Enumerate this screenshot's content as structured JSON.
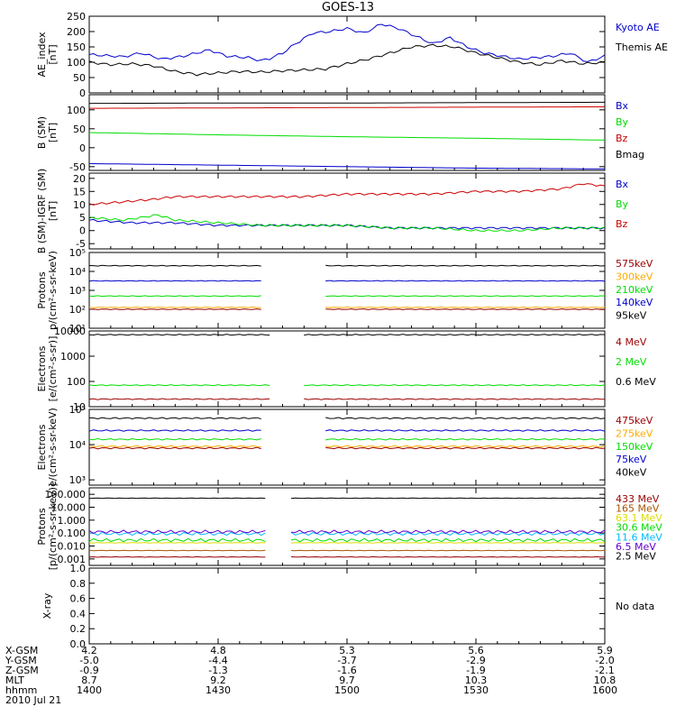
{
  "title": "GOES-13",
  "colors": {
    "black": "#000000",
    "blue": "#0000cc",
    "green": "#00dd00",
    "red": "#cc0000",
    "darkred": "#990000",
    "orange": "#ffaa00",
    "yellow": "#dddd00",
    "cyan": "#00bbff",
    "purple": "#6600cc",
    "brown": "#aa5500",
    "gray": "#444444"
  },
  "x_ticks_time": [
    "1400",
    "1430",
    "1500",
    "1530",
    "1600"
  ],
  "footer": {
    "rows": [
      {
        "label": "X-GSM",
        "values": [
          "4.2",
          "4.8",
          "5.3",
          "5.6",
          "5.9"
        ]
      },
      {
        "label": "Y-GSM",
        "values": [
          "-5.0",
          "-4.4",
          "-3.7",
          "-2.9",
          "-2.0"
        ]
      },
      {
        "label": "Z-GSM",
        "values": [
          "-0.9",
          "-1.3",
          "-1.6",
          "-1.9",
          "-2.1"
        ]
      },
      {
        "label": "MLT",
        "values": [
          "8.7",
          "9.2",
          "9.7",
          "10.3",
          "10.8"
        ]
      },
      {
        "label": "hhmm",
        "values": [
          "1400",
          "1430",
          "1500",
          "1530",
          "1600"
        ]
      }
    ],
    "date": "2010 Jul 21"
  },
  "no_data_text": "No data",
  "chart_data": [
    {
      "type": "line",
      "ylabel": "AE_index\n[nT]",
      "scale": "linear",
      "ylim": [
        0,
        250
      ],
      "yticks": [
        "0",
        "50",
        "100",
        "150",
        "200",
        "250"
      ],
      "series": [
        {
          "name": "Kyoto AE",
          "color_key": "blue",
          "x": [
            0,
            8,
            12,
            17,
            22,
            28,
            32,
            37,
            40,
            42,
            45,
            48,
            52,
            56,
            60,
            64,
            68,
            72,
            76,
            80,
            84,
            88,
            92,
            96,
            100,
            104,
            108,
            112,
            116,
            120
          ],
          "y": [
            125,
            118,
            130,
            110,
            120,
            140,
            120,
            115,
            105,
            112,
            130,
            160,
            195,
            200,
            210,
            195,
            225,
            210,
            185,
            160,
            180,
            150,
            130,
            120,
            110,
            115,
            120,
            130,
            100,
            120
          ]
        },
        {
          "name": "Themis AE",
          "color_key": "black",
          "x": [
            0,
            5,
            10,
            15,
            20,
            25,
            30,
            35,
            40,
            45,
            50,
            55,
            60,
            65,
            70,
            75,
            80,
            85,
            90,
            95,
            100,
            105,
            110,
            115,
            120
          ],
          "y": [
            100,
            92,
            95,
            88,
            70,
            60,
            65,
            70,
            68,
            72,
            75,
            78,
            95,
            110,
            130,
            150,
            155,
            150,
            130,
            115,
            100,
            92,
            105,
            95,
            100
          ]
        }
      ]
    },
    {
      "type": "line",
      "ylabel": "B (SM)\n[nT]",
      "scale": "linear",
      "ylim": [
        -60,
        140
      ],
      "yticks": [
        "-50",
        "0",
        "50",
        "100"
      ],
      "series": [
        {
          "name": "Bx",
          "color_key": "blue",
          "x": [
            0,
            30,
            60,
            90,
            120
          ],
          "y": [
            -42,
            -46,
            -50,
            -54,
            -56
          ]
        },
        {
          "name": "By",
          "color_key": "green",
          "x": [
            0,
            30,
            60,
            90,
            120
          ],
          "y": [
            40,
            34,
            29,
            25,
            20
          ]
        },
        {
          "name": "Bz",
          "color_key": "red",
          "x": [
            0,
            30,
            60,
            90,
            120
          ],
          "y": [
            104,
            105,
            106,
            107,
            108
          ]
        },
        {
          "name": "Bmag",
          "color_key": "black",
          "x": [
            0,
            30,
            60,
            90,
            120
          ],
          "y": [
            117,
            118,
            118,
            119,
            120
          ]
        }
      ]
    },
    {
      "type": "line",
      "ylabel": "B (SM)-IGRF (SM)\n[nT]",
      "scale": "linear",
      "ylim": [
        -7,
        22
      ],
      "yticks": [
        "-5",
        "0",
        "5",
        "10",
        "15",
        "20"
      ],
      "series": [
        {
          "name": "Bx",
          "color_key": "blue",
          "x": [
            0,
            10,
            20,
            30,
            40,
            50,
            60,
            70,
            80,
            90,
            100,
            110,
            120
          ],
          "y": [
            4,
            3,
            3,
            2,
            2,
            2,
            2,
            1,
            1,
            1,
            1,
            1,
            1
          ]
        },
        {
          "name": "By",
          "color_key": "green",
          "x": [
            0,
            8,
            12,
            16,
            20,
            30,
            40,
            50,
            60,
            70,
            80,
            90,
            100,
            110,
            120
          ],
          "y": [
            5,
            4,
            5,
            6,
            4,
            3,
            2,
            2,
            2,
            1,
            1,
            0,
            0,
            1,
            1
          ]
        },
        {
          "name": "Bz",
          "color_key": "red",
          "x": [
            0,
            8,
            15,
            20,
            30,
            40,
            50,
            60,
            70,
            80,
            90,
            100,
            110,
            115,
            120
          ],
          "y": [
            10,
            11,
            12,
            13,
            13,
            13,
            13,
            14,
            14,
            14,
            15,
            15,
            16,
            18,
            17
          ]
        }
      ]
    },
    {
      "type": "line",
      "ylabel": "Protons\np/(cm²-s-sr-keV)",
      "scale": "log",
      "ylim": [
        1,
        5
      ],
      "yticks": [
        "10¹",
        "10²",
        "10³",
        "10⁴",
        "10⁵"
      ],
      "gaps": [
        [
          40,
          55
        ]
      ],
      "series": [
        {
          "name": "575keV",
          "color_key": "darkred",
          "x": [
            0,
            120
          ],
          "y": [
            2.0,
            2.0
          ]
        },
        {
          "name": "300keV",
          "color_key": "orange",
          "x": [
            0,
            120
          ],
          "y": [
            2.1,
            2.1
          ]
        },
        {
          "name": "210keV",
          "color_key": "green",
          "x": [
            0,
            120
          ],
          "y": [
            2.7,
            2.7
          ]
        },
        {
          "name": "140keV",
          "color_key": "blue",
          "x": [
            0,
            120
          ],
          "y": [
            3.5,
            3.5
          ]
        },
        {
          "name": "95keV",
          "color_key": "black",
          "x": [
            0,
            120
          ],
          "y": [
            4.3,
            4.3
          ]
        }
      ]
    },
    {
      "type": "line",
      "ylabel": "Electrons\n[e/(cm²-s-sr)]",
      "scale": "log",
      "ylim": [
        1,
        4
      ],
      "yticks": [
        "10",
        "100",
        "1000",
        "10000"
      ],
      "gaps": [
        [
          42,
          50
        ]
      ],
      "series": [
        {
          "name": "4 MeV",
          "color_key": "darkred",
          "x": [
            0,
            120
          ],
          "y": [
            1.3,
            1.3
          ]
        },
        {
          "name": "2 MeV",
          "color_key": "green",
          "x": [
            0,
            120
          ],
          "y": [
            1.85,
            1.85
          ]
        },
        {
          "name": "0.6 MeV",
          "color_key": "black",
          "x": [
            0,
            120
          ],
          "y": [
            3.85,
            3.85
          ]
        }
      ]
    },
    {
      "type": "line",
      "ylabel": "Electrons\ne/(cm²-s-sr-keV)",
      "scale": "log",
      "ylim": [
        2.85,
        5
      ],
      "yticks": [
        "10³",
        "10⁴",
        "10⁵"
      ],
      "gaps": [
        [
          40,
          55
        ]
      ],
      "series": [
        {
          "name": "475keV",
          "color_key": "darkred",
          "x": [
            0,
            120
          ],
          "y": [
            3.9,
            3.9
          ]
        },
        {
          "name": "275keV",
          "color_key": "orange",
          "x": [
            0,
            120
          ],
          "y": [
            3.95,
            3.95
          ]
        },
        {
          "name": "150keV",
          "color_key": "green",
          "x": [
            0,
            120
          ],
          "y": [
            4.15,
            4.15
          ]
        },
        {
          "name": "75keV",
          "color_key": "blue",
          "x": [
            0,
            120
          ],
          "y": [
            4.4,
            4.4
          ]
        },
        {
          "name": "40keV",
          "color_key": "black",
          "x": [
            0,
            120
          ],
          "y": [
            4.75,
            4.75
          ]
        }
      ]
    },
    {
      "type": "line",
      "ylabel": "Protons\n[p/(cm²-s-sr-keV)]",
      "scale": "log",
      "ylim": [
        -3.5,
        2.5
      ],
      "yticks": [
        "0.001",
        "0.010",
        "0.100",
        "1.000",
        "10.000",
        "100.000"
      ],
      "gaps": [
        [
          41,
          47
        ]
      ],
      "series": [
        {
          "name": "433 MeV",
          "color_key": "darkred",
          "x": [
            0,
            120
          ],
          "y": [
            -2.85,
            -2.85
          ]
        },
        {
          "name": "165 MeV",
          "color_key": "brown",
          "x": [
            0,
            120
          ],
          "y": [
            -2.35,
            -2.35
          ]
        },
        {
          "name": "63.1 MeV",
          "color_key": "yellow",
          "x": [
            0,
            120
          ],
          "y": [
            -1.75,
            -1.75
          ]
        },
        {
          "name": "30.6 MeV",
          "color_key": "green",
          "x": [
            0,
            120
          ],
          "y": [
            -1.55,
            -1.55
          ]
        },
        {
          "name": "11.6 MeV",
          "color_key": "cyan",
          "x": [
            0,
            120
          ],
          "y": [
            -1.05,
            -1.05
          ]
        },
        {
          "name": "6.5 MeV",
          "color_key": "purple",
          "x": [
            0,
            120
          ],
          "y": [
            -0.9,
            -0.9
          ]
        },
        {
          "name": "2.5 MeV",
          "color_key": "black",
          "x": [
            0,
            120
          ],
          "y": [
            1.7,
            1.7
          ]
        }
      ]
    },
    {
      "type": "line",
      "ylabel": "X-ray",
      "scale": "linear",
      "ylim": [
        0,
        1
      ],
      "yticks": [
        "0.0",
        "0.2",
        "0.4",
        "0.6",
        "0.8",
        "1.0"
      ],
      "no_data": true,
      "series": []
    }
  ]
}
